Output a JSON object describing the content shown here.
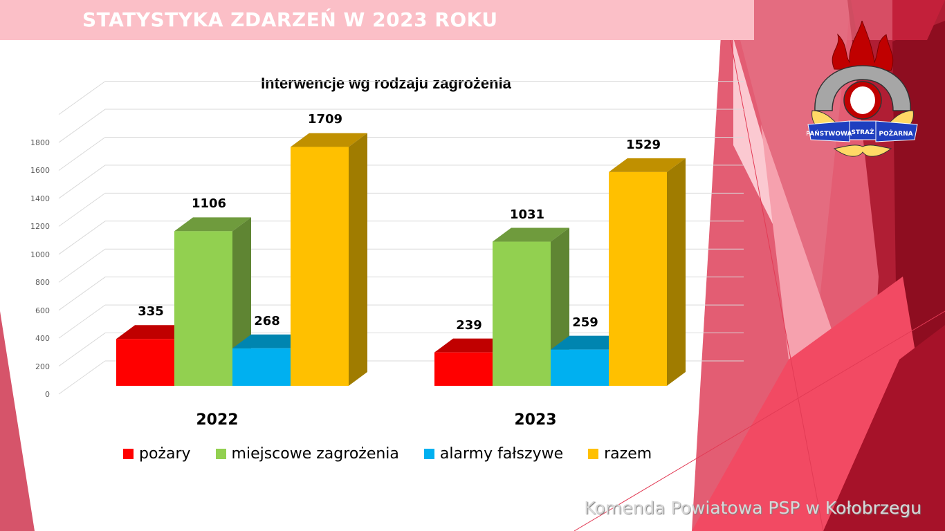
{
  "slide": {
    "title": "STATYSTYKA ZDARZEŃ W 2023 ROKU",
    "footer": "Komenda Powiatowa PSP w Kołobrzegu",
    "logo": {
      "banner_left": "PAŃSTWOWA",
      "banner_center": "STRAŻ",
      "banner_right": "POŻARNA"
    }
  },
  "colors": {
    "title_bar": "#fbbfc7",
    "pozary": "#ff0000",
    "miejscowe": "#92d050",
    "alarmy": "#00b0f0",
    "razem": "#ffc000"
  },
  "chart_data": {
    "type": "bar",
    "title": "Interwencje wg rodzaju zagrożenia",
    "categories": [
      "2022",
      "2023"
    ],
    "series": [
      {
        "name": "pożary",
        "values": [
          335,
          239
        ]
      },
      {
        "name": "miejscowe zagrożenia",
        "values": [
          1106,
          1031
        ]
      },
      {
        "name": "alarmy fałszywe",
        "values": [
          268,
          259
        ]
      },
      {
        "name": "razem",
        "values": [
          1709,
          1529
        ]
      }
    ],
    "yticks": [
      "0",
      "200",
      "400",
      "600",
      "800",
      "1000",
      "1200",
      "1400",
      "1600",
      "1800"
    ],
    "ylim": [
      0,
      2000
    ],
    "xlabel": "",
    "ylabel": "",
    "grid": true,
    "legend_position": "bottom",
    "style": "3d-clustered-column"
  },
  "labels": {
    "y2022": [
      "335",
      "1106",
      "268",
      "1709"
    ],
    "y2023": [
      "239",
      "1031",
      "259",
      "1529"
    ]
  },
  "legend": [
    "pożary",
    "miejscowe zagrożenia",
    "alarmy fałszywe",
    "razem"
  ]
}
